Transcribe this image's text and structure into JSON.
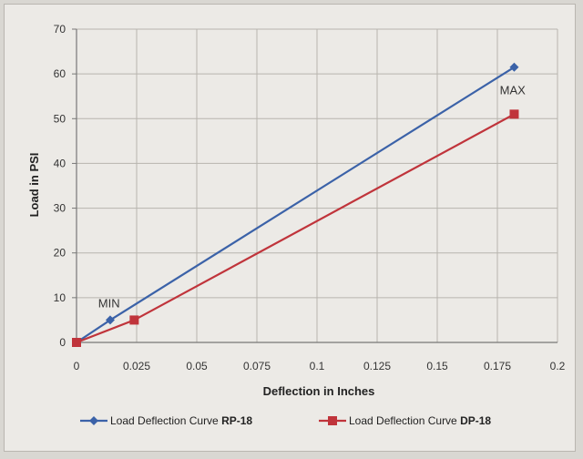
{
  "chart_data": {
    "type": "line",
    "title": "",
    "xlabel": "Deflection in Inches",
    "ylabel": "Load in PSI",
    "xlim": [
      0,
      0.2
    ],
    "ylim": [
      0,
      70
    ],
    "x_ticks": [
      "0",
      "0.025",
      "0.05",
      "0.075",
      "0.1",
      "0.125",
      "0.15",
      "0.175",
      "0.2"
    ],
    "y_ticks": [
      "0",
      "10",
      "20",
      "30",
      "40",
      "50",
      "60",
      "70"
    ],
    "grid": true,
    "legend": "bottom",
    "series": [
      {
        "name": "Load Deflection Curve",
        "name_suffix": "RP-18",
        "color": "#3b62a8",
        "marker": "diamond",
        "x": [
          0,
          0.014,
          0.182
        ],
        "y": [
          0,
          5,
          61.5
        ]
      },
      {
        "name": "Load Deflection Curve",
        "name_suffix": "DP-18",
        "color": "#c0343b",
        "marker": "square",
        "x": [
          0,
          0.024,
          0.182
        ],
        "y": [
          0,
          5,
          51
        ]
      }
    ],
    "annotations": [
      {
        "text": "MIN",
        "x": 0.009,
        "y": 7.8
      },
      {
        "text": "MAX",
        "x": 0.176,
        "y": 55.5
      }
    ]
  }
}
